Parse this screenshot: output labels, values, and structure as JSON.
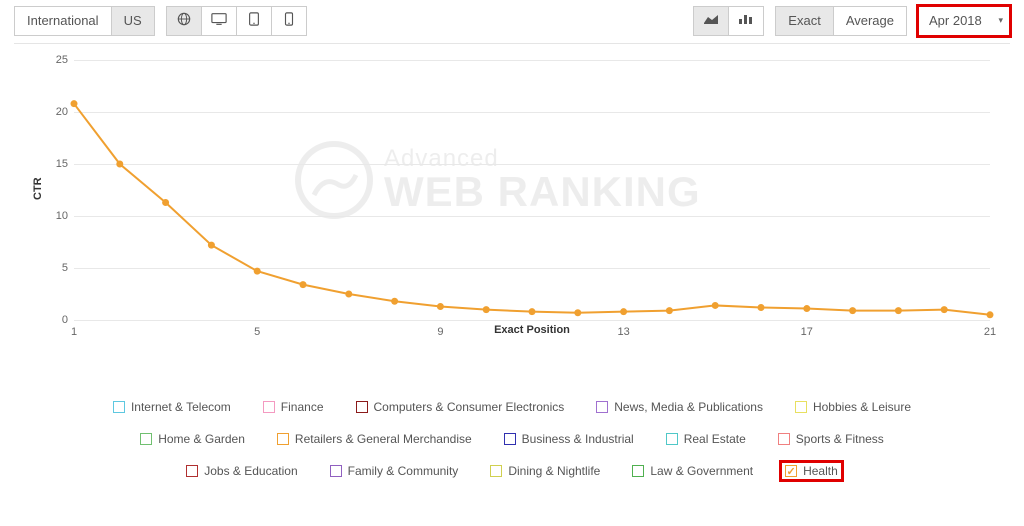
{
  "toolbar": {
    "region": {
      "international": "International",
      "us": "US",
      "active": "us"
    },
    "devices": [
      "globe",
      "desktop",
      "tablet",
      "mobile"
    ],
    "device_active": "globe",
    "chart_types": [
      "area",
      "bar"
    ],
    "chart_type_active": "area",
    "mode": {
      "exact": "Exact",
      "average": "Average",
      "active": "exact"
    },
    "date": "Apr 2018"
  },
  "chart": {
    "type": "line",
    "y_title": "CTR",
    "x_title": "Exact Position",
    "xlim": [
      1,
      21
    ],
    "ylim": [
      0,
      25
    ],
    "yticks": [
      0,
      5,
      10,
      15,
      20,
      25
    ],
    "xticks": [
      1,
      5,
      9,
      13,
      17,
      21
    ],
    "grid_color": "#e8e8e8",
    "background": "#ffffff",
    "series": {
      "name": "Health",
      "color": "#f0a030",
      "line_width": 2,
      "marker_radius": 3.5,
      "x": [
        1,
        2,
        3,
        4,
        5,
        6,
        7,
        8,
        9,
        10,
        11,
        12,
        13,
        14,
        15,
        16,
        17,
        18,
        19,
        20,
        21
      ],
      "y": [
        20.8,
        15.0,
        11.3,
        7.2,
        4.7,
        3.4,
        2.5,
        1.8,
        1.3,
        1.0,
        0.8,
        0.7,
        0.8,
        0.9,
        1.4,
        1.2,
        1.1,
        0.9,
        0.9,
        1.0,
        0.5
      ]
    },
    "watermark": {
      "line1": "Advanced",
      "line2": "WEB RANKING"
    }
  },
  "legend": {
    "rows": [
      [
        {
          "label": "Internet & Telecom",
          "color": "#5ec8e0",
          "checked": false
        },
        {
          "label": "Finance",
          "color": "#f49ac1",
          "checked": false
        },
        {
          "label": "Computers & Consumer Electronics",
          "color": "#8b1a1a",
          "checked": false
        },
        {
          "label": "News, Media & Publications",
          "color": "#a070d0",
          "checked": false
        },
        {
          "label": "Hobbies & Leisure",
          "color": "#e8e060",
          "checked": false
        }
      ],
      [
        {
          "label": "Home & Garden",
          "color": "#70c070",
          "checked": false
        },
        {
          "label": "Retailers & General Merchandise",
          "color": "#f0a030",
          "checked": false
        },
        {
          "label": "Business & Industrial",
          "color": "#3030b0",
          "checked": false
        },
        {
          "label": "Real Estate",
          "color": "#50c8c8",
          "checked": false
        },
        {
          "label": "Sports & Fitness",
          "color": "#f08080",
          "checked": false
        }
      ],
      [
        {
          "label": "Jobs & Education",
          "color": "#b03030",
          "checked": false
        },
        {
          "label": "Family & Community",
          "color": "#9060c0",
          "checked": false
        },
        {
          "label": "Dining & Nightlife",
          "color": "#d0d050",
          "checked": false
        },
        {
          "label": "Law & Government",
          "color": "#50b050",
          "checked": false
        },
        {
          "label": "Health",
          "color": "#f0a030",
          "checked": true,
          "highlight": true
        }
      ]
    ]
  }
}
